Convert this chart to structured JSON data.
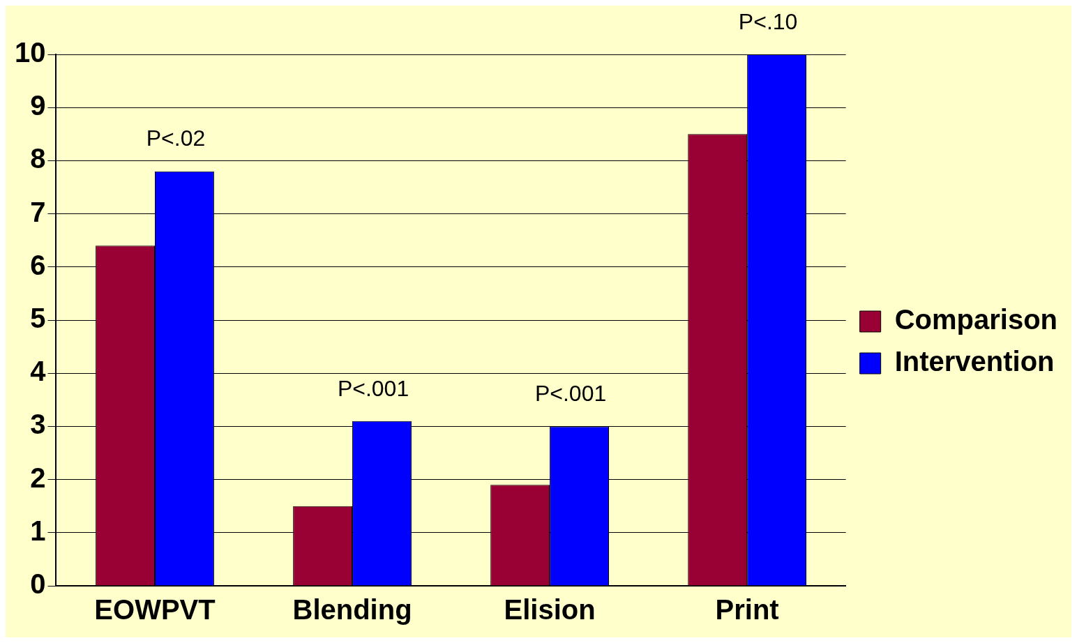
{
  "chart_data": {
    "type": "bar",
    "categories": [
      "EOWPVT",
      "Blending",
      "Elision",
      "Print"
    ],
    "series": [
      {
        "name": "Comparison",
        "color": "#990033",
        "values": [
          6.4,
          1.5,
          1.9,
          8.5
        ]
      },
      {
        "name": "Intervention",
        "color": "#0000ff",
        "values": [
          7.8,
          3.1,
          3.0,
          10.0
        ]
      }
    ],
    "ylim": [
      0,
      10
    ],
    "yticks": [
      0,
      1,
      2,
      3,
      4,
      5,
      6,
      7,
      8,
      9,
      10
    ],
    "grid": "y",
    "legend": "right",
    "annotations": [
      "P<.02",
      "P<.001",
      "P<.001",
      "P<.10"
    ]
  }
}
